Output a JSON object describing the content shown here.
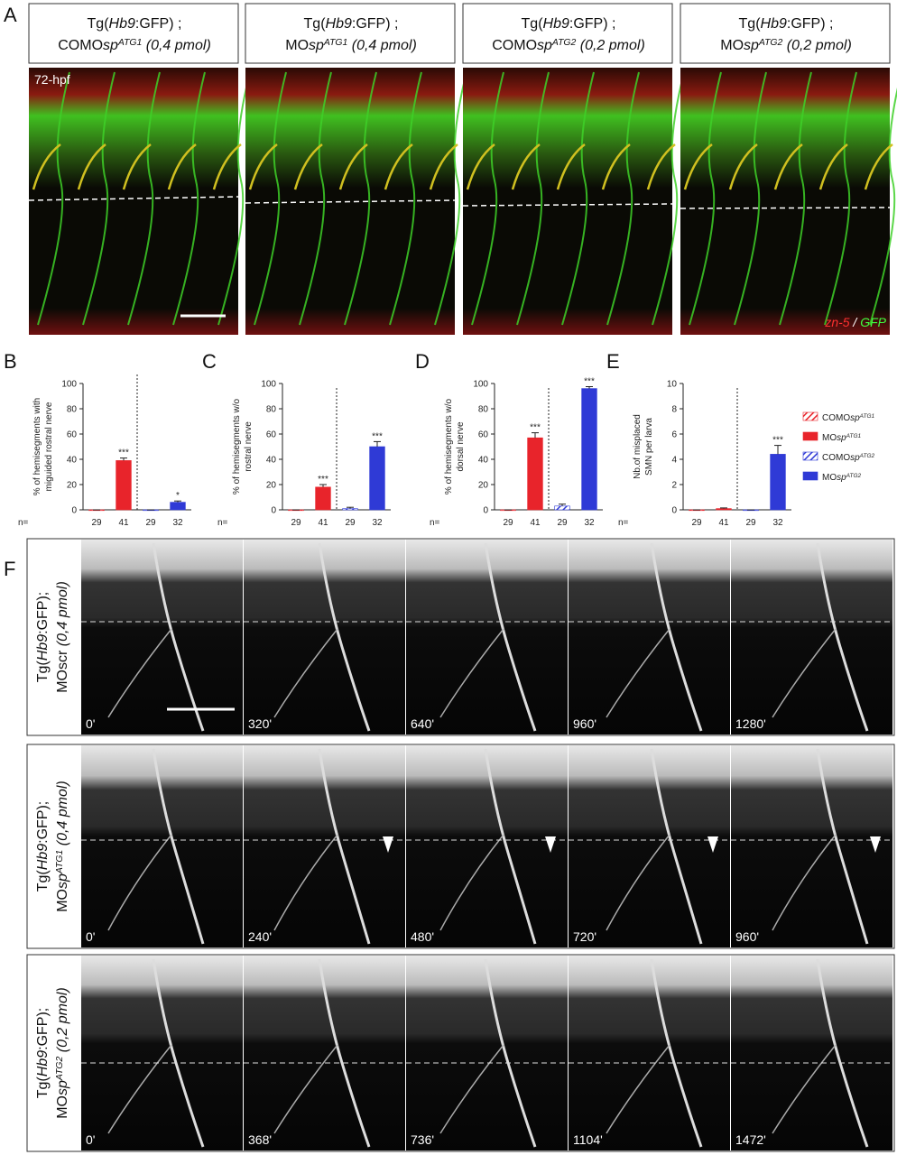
{
  "panel_labels": [
    "A",
    "B",
    "C",
    "D",
    "E",
    "F"
  ],
  "panel_a": {
    "headers": [
      {
        "line1": [
          "Tg(",
          "Hb9",
          ":GFP) ;"
        ],
        "line2": [
          "COMO",
          "sp",
          "ATG1",
          " (0,4 pmol)"
        ]
      },
      {
        "line1": [
          "Tg(",
          "Hb9",
          ":GFP) ;"
        ],
        "line2": [
          "MO",
          "sp",
          "ATG1",
          " (0,4 pmol)"
        ]
      },
      {
        "line1": [
          "Tg(",
          "Hb9",
          ":GFP) ;"
        ],
        "line2": [
          "COMO",
          "sp",
          "ATG2",
          " (0,2 pmol)"
        ]
      },
      {
        "line1": [
          "Tg(",
          "Hb9",
          ":GFP) ;"
        ],
        "line2": [
          "MO",
          "sp",
          "ATG2",
          " (0,2 pmol)"
        ]
      }
    ],
    "stage": "72-hpf",
    "stain": [
      "zn-5",
      " / ",
      "GFP"
    ]
  },
  "chart_data": [
    {
      "type": "bar",
      "ylabel": [
        "% of hemisegments with",
        "miguided rostral nerve"
      ],
      "n_label": "n=",
      "categories": [
        "29",
        "41",
        "29",
        "32"
      ],
      "values": [
        0,
        39,
        0,
        6
      ],
      "errors": [
        0,
        2,
        0,
        1
      ],
      "value_labels": [
        null,
        "***",
        null,
        "*"
      ],
      "colors": [
        "#e8242b",
        "#e8242b",
        "#2f3ad6",
        "#2f3ad6"
      ],
      "hatched": [
        true,
        false,
        true,
        false
      ],
      "ylim": [
        0,
        100
      ],
      "yticks": [
        0,
        20,
        40,
        60,
        80,
        100
      ]
    },
    {
      "type": "bar",
      "ylabel": [
        "% of hemisegments w/o",
        "rostral nerve"
      ],
      "n_label": "n=",
      "categories": [
        "29",
        "41",
        "29",
        "32"
      ],
      "values": [
        0,
        18,
        1,
        50
      ],
      "errors": [
        0,
        2,
        1,
        4
      ],
      "value_labels": [
        null,
        "***",
        null,
        "***"
      ],
      "colors": [
        "#e8242b",
        "#e8242b",
        "#2f3ad6",
        "#2f3ad6"
      ],
      "hatched": [
        true,
        false,
        true,
        false
      ],
      "ylim": [
        0,
        100
      ],
      "yticks": [
        0,
        20,
        40,
        60,
        80,
        100
      ]
    },
    {
      "type": "bar",
      "ylabel": [
        "% of hemisegments w/o",
        "dorsal nerve"
      ],
      "n_label": "n=",
      "categories": [
        "29",
        "41",
        "29",
        "32"
      ],
      "values": [
        0,
        57,
        3,
        96
      ],
      "errors": [
        0,
        4,
        1.5,
        1.5
      ],
      "value_labels": [
        null,
        "***",
        null,
        "***"
      ],
      "colors": [
        "#e8242b",
        "#e8242b",
        "#2f3ad6",
        "#2f3ad6"
      ],
      "hatched": [
        true,
        false,
        true,
        false
      ],
      "ylim": [
        0,
        100
      ],
      "yticks": [
        0,
        20,
        40,
        60,
        80,
        100
      ]
    },
    {
      "type": "bar",
      "ylabel": [
        "Nb.of misplaced",
        "SMN per larva"
      ],
      "n_label": "n=",
      "categories": [
        "29",
        "41",
        "29",
        "32"
      ],
      "values": [
        0,
        0.1,
        0,
        4.4
      ],
      "errors": [
        0,
        0.05,
        0,
        0.7
      ],
      "value_labels": [
        null,
        null,
        null,
        "***"
      ],
      "colors": [
        "#e8242b",
        "#e8242b",
        "#2f3ad6",
        "#2f3ad6"
      ],
      "hatched": [
        true,
        false,
        true,
        false
      ],
      "ylim": [
        0,
        10
      ],
      "yticks": [
        0,
        2,
        4,
        6,
        8,
        10
      ]
    }
  ],
  "legend": {
    "entries": [
      [
        "COMO",
        "sp",
        "ATG1"
      ],
      [
        "MO",
        "sp",
        "ATG1"
      ],
      [
        "COMO",
        "sp",
        "ATG2"
      ],
      [
        "MO",
        "sp",
        "ATG2"
      ]
    ],
    "colors": [
      "#e8242b",
      "#e8242b",
      "#2f3ad6",
      "#2f3ad6"
    ],
    "hatched": [
      true,
      false,
      true,
      false
    ]
  },
  "panel_f": {
    "rows": [
      {
        "line1": [
          "Tg(",
          "Hb9",
          ":GFP);"
        ],
        "line2": [
          "MOscr",
          " (0,4 pmol)"
        ],
        "times": [
          "0'",
          "320'",
          "640'",
          "960'",
          "1280'"
        ]
      },
      {
        "line1": [
          "Tg(",
          "Hb9",
          ":GFP);"
        ],
        "line2": [
          "MO",
          "sp",
          "ATG1",
          " (0,4 pmol)"
        ],
        "times": [
          "0'",
          "240'",
          "480'",
          "720'",
          "960'"
        ]
      },
      {
        "line1": [
          "Tg(",
          "Hb9",
          ":GFP);"
        ],
        "line2": [
          "MO",
          "sp",
          "ATG2",
          " (0,2 pmol)"
        ],
        "times": [
          "0'",
          "368'",
          "736'",
          "1104'",
          "1472'"
        ]
      }
    ]
  }
}
